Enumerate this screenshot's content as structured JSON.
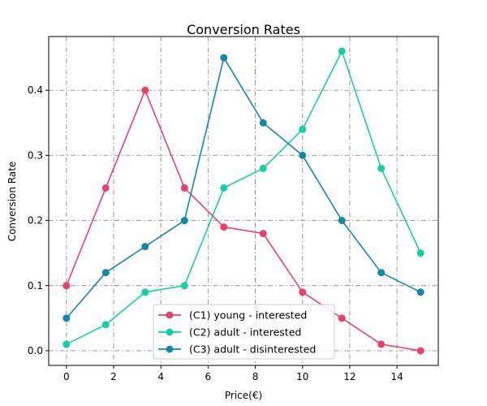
{
  "chart_data": {
    "type": "line",
    "title": "Conversion Rates",
    "xlabel": "Price(€)",
    "ylabel": "Conversion Rate",
    "xlim": [
      -0.75,
      15.75
    ],
    "ylim": [
      -0.0225,
      0.4825
    ],
    "xticks": [
      0,
      2,
      4,
      6,
      8,
      10,
      12,
      14
    ],
    "yticks": [
      0.0,
      0.1,
      0.2,
      0.3,
      0.4
    ],
    "ytick_labels": [
      "0.0",
      "0.1",
      "0.2",
      "0.3",
      "0.4"
    ],
    "grid": true,
    "legend_position": "bottom-center",
    "x": [
      0,
      1.667,
      3.333,
      5,
      6.667,
      8.333,
      10,
      11.667,
      13.333,
      15
    ],
    "series": [
      {
        "name": "(C1) young - interested",
        "color": "#e6426e",
        "values": [
          0.1,
          0.25,
          0.4,
          0.25,
          0.19,
          0.18,
          0.09,
          0.05,
          0.01,
          0.0
        ]
      },
      {
        "name": "(C2) adult - interested",
        "color": "#14d0a0",
        "values": [
          0.01,
          0.04,
          0.09,
          0.1,
          0.25,
          0.28,
          0.34,
          0.46,
          0.28,
          0.15
        ]
      },
      {
        "name": "(C3) adult - disinterested",
        "color": "#1487ab",
        "values": [
          0.05,
          0.12,
          0.16,
          0.2,
          0.45,
          0.35,
          0.3,
          0.2,
          0.12,
          0.09
        ]
      }
    ]
  }
}
